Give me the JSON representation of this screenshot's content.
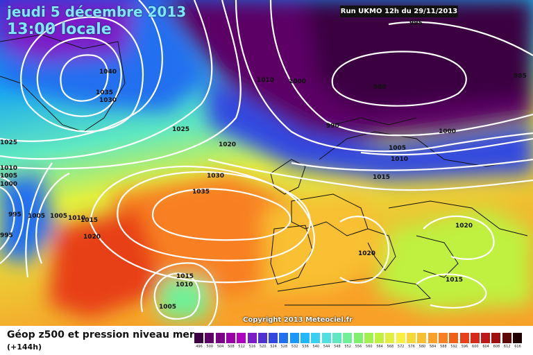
{
  "header": {
    "date": "jeudi 5 décembre 2013",
    "time": "13:00 locale",
    "run": "Run UKMO 12h du 29/11/2013"
  },
  "copyright": "Copyright 2013 Meteociel.fr",
  "footer": {
    "title": "Géop z500 et pression niveau mer",
    "subtitle": "(+144h)"
  },
  "colorbar": {
    "values": [
      "496",
      "500",
      "504",
      "508",
      "512",
      "516",
      "520",
      "524",
      "528",
      "532",
      "536",
      "540",
      "544",
      "548",
      "552",
      "556",
      "560",
      "564",
      "568",
      "572",
      "576",
      "580",
      "584",
      "588",
      "592",
      "596",
      "600",
      "604",
      "608",
      "612",
      "616"
    ],
    "colors": [
      "#3a0040",
      "#5c0066",
      "#7a0088",
      "#9a00a8",
      "#b000c0",
      "#7a1cc8",
      "#5030d0",
      "#3048e0",
      "#2070f0",
      "#1898f8",
      "#20b8f8",
      "#38d0f0",
      "#50e0e0",
      "#60e8c0",
      "#70f098",
      "#80f070",
      "#a0f050",
      "#c0f040",
      "#e0f040",
      "#f8f040",
      "#f8d838",
      "#f8c030",
      "#f8a028",
      "#f88020",
      "#f06018",
      "#e84018",
      "#d82818",
      "#c01818",
      "#a01010",
      "#600808",
      "#200000"
    ]
  },
  "isobar_labels": [
    "995",
    "1010",
    "1000",
    "980",
    "985",
    "1040",
    "1035",
    "1030",
    "1025",
    "1020",
    "990",
    "1000",
    "1005",
    "1010",
    "1015",
    "1030",
    "1035",
    "1020",
    "1020",
    "1025",
    "1010",
    "1005",
    "1000",
    "995",
    "1005",
    "1010",
    "1015",
    "1020",
    "1015",
    "1010",
    "1005",
    "1020",
    "1015",
    "995"
  ]
}
